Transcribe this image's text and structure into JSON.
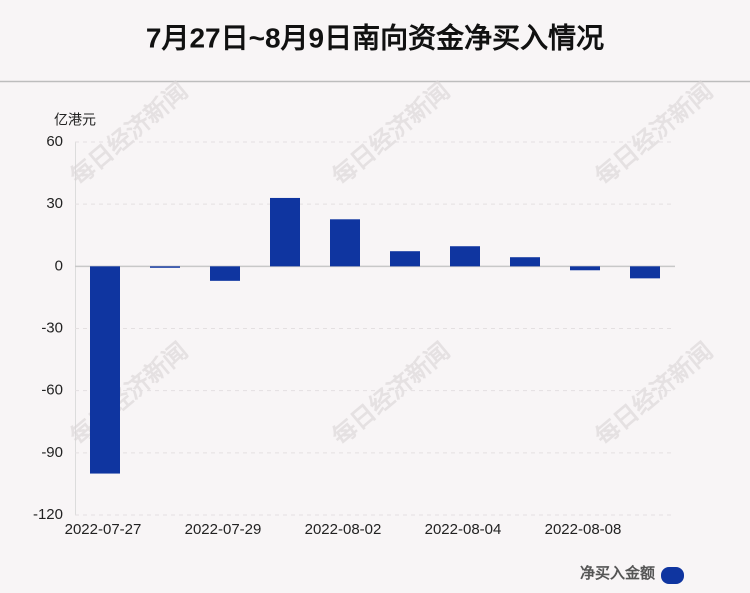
{
  "chart_data": {
    "type": "bar",
    "title": "7月27日~8月9日南向资金净买入情况",
    "y_label": "亿港元",
    "watermark": "每日经济新闻",
    "categories": [
      "2022-07-27",
      null,
      "2022-07-29",
      null,
      "2022-08-02",
      null,
      "2022-08-04",
      null,
      "2022-08-08",
      null
    ],
    "series": [
      {
        "name": "净买入金额",
        "color": "#0f35a0",
        "values": [
          -100,
          -0.7,
          -7,
          33,
          22.7,
          7.3,
          9.7,
          4.4,
          -1.9,
          -5.8
        ]
      }
    ],
    "ylim": [
      -120,
      60
    ],
    "yticks": [
      -120,
      -90,
      -60,
      -30,
      0,
      30,
      60
    ],
    "grid": true,
    "legend": "bottom-right"
  }
}
